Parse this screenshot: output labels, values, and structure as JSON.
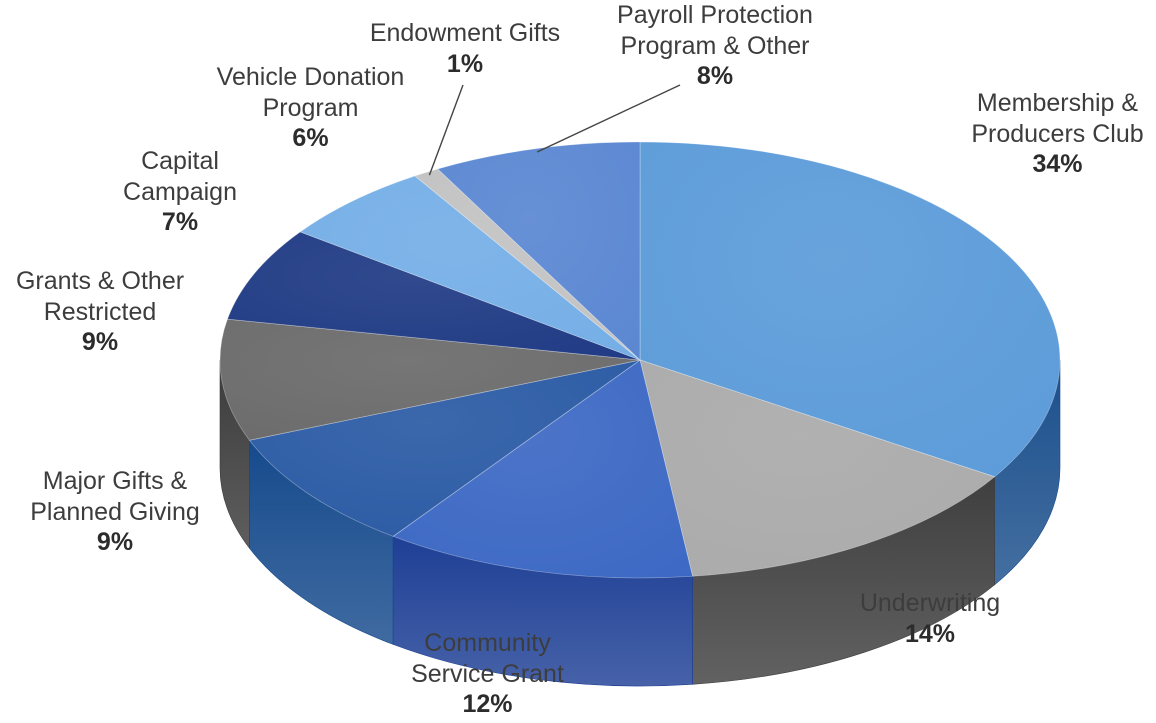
{
  "chart_data": {
    "type": "pie",
    "title": "",
    "slices": [
      {
        "name_lines": [
          "Membership &",
          "Producers Club"
        ],
        "value": 34,
        "value_label": "34%",
        "color": "#5b9bd9",
        "side": "#1b4f8c"
      },
      {
        "name_lines": [
          "Underwriting"
        ],
        "value": 14,
        "value_label": "14%",
        "color": "#aaaaaa",
        "side": "#3f3f3f"
      },
      {
        "name_lines": [
          "Community",
          "Service Grant"
        ],
        "value": 12,
        "value_label": "12%",
        "color": "#3c68c4",
        "side": "#1e3f95"
      },
      {
        "name_lines": [
          "Major Gifts &",
          "Planned Giving"
        ],
        "value": 9,
        "value_label": "9%",
        "color": "#2a5aa4",
        "side": "#164a8c"
      },
      {
        "name_lines": [
          "Grants & Other",
          "Restricted"
        ],
        "value": 9,
        "value_label": "9%",
        "color": "#6a6a6a",
        "side": "#3b3b3b"
      },
      {
        "name_lines": [
          "Capital",
          "Campaign"
        ],
        "value": 7,
        "value_label": "7%",
        "color": "#1f3a84",
        "side": "#152c66"
      },
      {
        "name_lines": [
          "Vehicle Donation",
          "Program"
        ],
        "value": 6,
        "value_label": "6%",
        "color": "#74aee6",
        "side": "#3f78bb"
      },
      {
        "name_lines": [
          "Endowment Gifts"
        ],
        "value": 1,
        "value_label": "1%",
        "color": "#c2c2c2",
        "side": "#8a8a8a"
      },
      {
        "name_lines": [
          "Payroll Protection",
          "Program & Other"
        ],
        "value": 8,
        "value_label": "8%",
        "color": "#5a87d2",
        "side": "#3262ad"
      }
    ],
    "legend": "none",
    "style": "3d-exploded-labels"
  }
}
